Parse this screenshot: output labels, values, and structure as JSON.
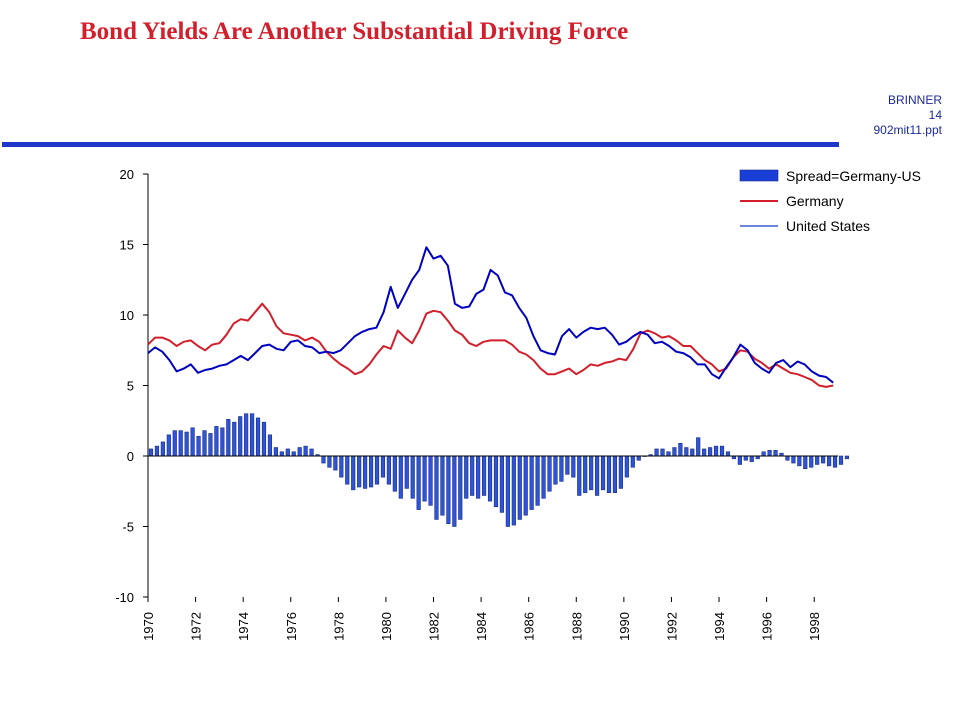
{
  "slide": {
    "title": "Bond Yields Are Another Substantial Driving Force",
    "meta_lines": [
      "BRINNER",
      "14",
      "902mit11.ppt"
    ]
  },
  "colors": {
    "title": "#d21f2b",
    "rule": "#1f36c8",
    "germany": "#d21f2b",
    "us": "#0000c0",
    "spread_fill": "#2e55d6",
    "spread_stroke": "#1a2a8a"
  },
  "chart_data": {
    "type": "bar+line",
    "title": "",
    "xlabel": "",
    "ylabel": "",
    "ylim": [
      -10,
      20
    ],
    "yticks": [
      -10,
      -5,
      0,
      5,
      10,
      15,
      20
    ],
    "xlim": [
      1970,
      1999
    ],
    "xticks": [
      "1970",
      "1972",
      "1974",
      "1976",
      "1978",
      "1980",
      "1982",
      "1984",
      "1986",
      "1988",
      "1990",
      "1992",
      "1994",
      "1996",
      "1998"
    ],
    "grid": false,
    "legend_position": "top-right",
    "series": [
      {
        "name": "Spread=Germany-US",
        "kind": "bar",
        "frequency": "quarterly",
        "start": 1970,
        "values": [
          0.5,
          0.7,
          1.0,
          1.5,
          1.8,
          1.8,
          1.7,
          2.0,
          1.4,
          1.8,
          1.6,
          2.1,
          2.0,
          2.6,
          2.4,
          2.8,
          3.0,
          3.0,
          2.7,
          2.4,
          1.5,
          0.6,
          0.3,
          0.5,
          0.3,
          0.6,
          0.7,
          0.5,
          0.1,
          -0.5,
          -0.8,
          -1.0,
          -1.5,
          -2.0,
          -2.4,
          -2.2,
          -2.3,
          -2.2,
          -2.0,
          -1.5,
          -2.0,
          -2.5,
          -3.0,
          -2.3,
          -3.0,
          -3.8,
          -3.2,
          -3.5,
          -4.5,
          -4.2,
          -4.8,
          -5.0,
          -4.5,
          -3.0,
          -2.8,
          -3.0,
          -2.8,
          -3.2,
          -3.6,
          -4.0,
          -5.0,
          -4.9,
          -4.5,
          -4.2,
          -3.8,
          -3.5,
          -3.0,
          -2.5,
          -2.0,
          -1.8,
          -1.3,
          -1.5,
          -2.8,
          -2.6,
          -2.4,
          -2.8,
          -2.4,
          -2.6,
          -2.6,
          -2.3,
          -1.5,
          -0.8,
          -0.3,
          0.0,
          0.1,
          0.5,
          0.5,
          0.3,
          0.6,
          0.9,
          0.6,
          0.5,
          1.3,
          0.5,
          0.6,
          0.7,
          0.7,
          0.3,
          -0.2,
          -0.6,
          -0.3,
          -0.4,
          -0.2,
          0.3,
          0.4,
          0.4,
          0.2,
          -0.3,
          -0.5,
          -0.7,
          -0.9,
          -0.8,
          -0.6,
          -0.5,
          -0.7,
          -0.8,
          -0.6,
          -0.2
        ]
      },
      {
        "name": "Germany",
        "kind": "line",
        "x": [
          1970.0,
          1970.3,
          1970.6,
          1970.9,
          1971.2,
          1971.5,
          1971.8,
          1972.1,
          1972.4,
          1972.7,
          1973.0,
          1973.3,
          1973.6,
          1973.9,
          1974.2,
          1974.5,
          1974.8,
          1975.1,
          1975.4,
          1975.7,
          1976.0,
          1976.3,
          1976.6,
          1976.9,
          1977.2,
          1977.5,
          1977.8,
          1978.1,
          1978.4,
          1978.7,
          1979.0,
          1979.3,
          1979.6,
          1979.9,
          1980.2,
          1980.5,
          1980.8,
          1981.1,
          1981.4,
          1981.7,
          1982.0,
          1982.3,
          1982.6,
          1982.9,
          1983.2,
          1983.5,
          1983.8,
          1984.1,
          1984.4,
          1984.7,
          1985.0,
          1985.3,
          1985.6,
          1985.9,
          1986.2,
          1986.5,
          1986.8,
          1987.1,
          1987.4,
          1987.7,
          1988.0,
          1988.3,
          1988.6,
          1988.9,
          1989.2,
          1989.5,
          1989.8,
          1990.1,
          1990.4,
          1990.7,
          1991.0,
          1991.3,
          1991.6,
          1991.9,
          1992.2,
          1992.5,
          1992.8,
          1993.1,
          1993.4,
          1993.7,
          1994.0,
          1994.3,
          1994.6,
          1994.9,
          1995.2,
          1995.5,
          1995.8,
          1996.1,
          1996.4,
          1996.7,
          1997.0,
          1997.3,
          1997.6,
          1997.9,
          1998.2,
          1998.5,
          1998.8
        ],
        "values": [
          7.9,
          8.4,
          8.4,
          8.2,
          7.8,
          8.1,
          8.2,
          7.8,
          7.5,
          7.9,
          8.0,
          8.6,
          9.4,
          9.7,
          9.6,
          10.2,
          10.8,
          10.2,
          9.2,
          8.7,
          8.6,
          8.5,
          8.2,
          8.4,
          8.1,
          7.4,
          6.9,
          6.5,
          6.2,
          5.8,
          6.0,
          6.5,
          7.2,
          7.8,
          7.6,
          8.9,
          8.4,
          8.0,
          8.9,
          10.1,
          10.3,
          10.2,
          9.6,
          8.9,
          8.6,
          8.0,
          7.8,
          8.1,
          8.2,
          8.2,
          8.2,
          7.9,
          7.4,
          7.2,
          6.8,
          6.2,
          5.8,
          5.8,
          6.0,
          6.2,
          5.8,
          6.1,
          6.5,
          6.4,
          6.6,
          6.7,
          6.9,
          6.8,
          7.6,
          8.7,
          8.9,
          8.7,
          8.4,
          8.5,
          8.2,
          7.8,
          7.8,
          7.3,
          6.8,
          6.5,
          6.0,
          6.2,
          7.0,
          7.5,
          7.4,
          6.9,
          6.6,
          6.2,
          6.5,
          6.2,
          5.9,
          5.8,
          5.6,
          5.4,
          5.0,
          4.9,
          5.0
        ]
      },
      {
        "name": "United States",
        "kind": "line",
        "x": [
          1970.0,
          1970.3,
          1970.6,
          1970.9,
          1971.2,
          1971.5,
          1971.8,
          1972.1,
          1972.4,
          1972.7,
          1973.0,
          1973.3,
          1973.6,
          1973.9,
          1974.2,
          1974.5,
          1974.8,
          1975.1,
          1975.4,
          1975.7,
          1976.0,
          1976.3,
          1976.6,
          1976.9,
          1977.2,
          1977.5,
          1977.8,
          1978.1,
          1978.4,
          1978.7,
          1979.0,
          1979.3,
          1979.6,
          1979.9,
          1980.2,
          1980.5,
          1980.8,
          1981.1,
          1981.4,
          1981.7,
          1982.0,
          1982.3,
          1982.6,
          1982.9,
          1983.2,
          1983.5,
          1983.8,
          1984.1,
          1984.4,
          1984.7,
          1985.0,
          1985.3,
          1985.6,
          1985.9,
          1986.2,
          1986.5,
          1986.8,
          1987.1,
          1987.4,
          1987.7,
          1988.0,
          1988.3,
          1988.6,
          1988.9,
          1989.2,
          1989.5,
          1989.8,
          1990.1,
          1990.4,
          1990.7,
          1991.0,
          1991.3,
          1991.6,
          1991.9,
          1992.2,
          1992.5,
          1992.8,
          1993.1,
          1993.4,
          1993.7,
          1994.0,
          1994.3,
          1994.6,
          1994.9,
          1995.2,
          1995.5,
          1995.8,
          1996.1,
          1996.4,
          1996.7,
          1997.0,
          1997.3,
          1997.6,
          1997.9,
          1998.2,
          1998.5,
          1998.8
        ],
        "values": [
          7.3,
          7.7,
          7.4,
          6.8,
          6.0,
          6.2,
          6.5,
          5.9,
          6.1,
          6.2,
          6.4,
          6.5,
          6.8,
          7.1,
          6.8,
          7.3,
          7.8,
          7.9,
          7.6,
          7.5,
          8.1,
          8.2,
          7.8,
          7.7,
          7.3,
          7.4,
          7.3,
          7.5,
          8.0,
          8.5,
          8.8,
          9.0,
          9.1,
          10.2,
          12.0,
          10.5,
          11.5,
          12.5,
          13.2,
          14.8,
          14.0,
          14.2,
          13.5,
          10.8,
          10.5,
          10.6,
          11.5,
          11.8,
          13.2,
          12.8,
          11.6,
          11.4,
          10.5,
          9.8,
          8.5,
          7.5,
          7.3,
          7.2,
          8.5,
          9.0,
          8.4,
          8.8,
          9.1,
          9.0,
          9.1,
          8.6,
          7.9,
          8.1,
          8.5,
          8.8,
          8.6,
          8.0,
          8.1,
          7.8,
          7.4,
          7.3,
          7.0,
          6.5,
          6.5,
          5.8,
          5.5,
          6.3,
          7.0,
          7.9,
          7.5,
          6.6,
          6.2,
          5.9,
          6.6,
          6.8,
          6.3,
          6.7,
          6.5,
          6.0,
          5.7,
          5.6,
          5.2
        ]
      }
    ]
  }
}
